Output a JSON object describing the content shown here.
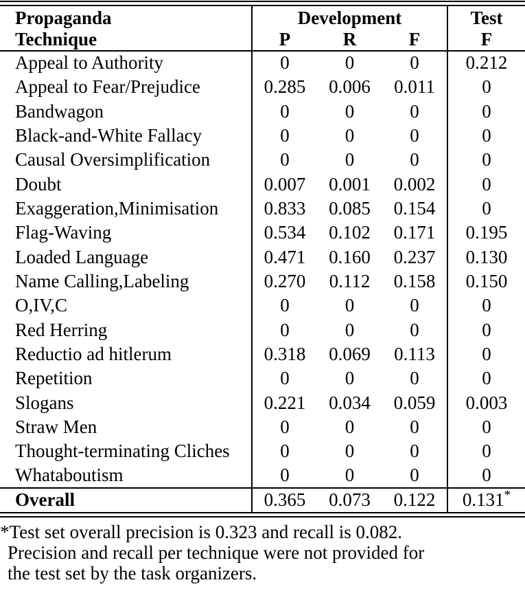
{
  "table": {
    "header": {
      "col1_line1": "Propaganda",
      "col1_line2": "Technique",
      "dev_group": "Development",
      "test_group": "Test",
      "dev_cols": [
        "P",
        "R",
        "F"
      ],
      "test_col": "F"
    },
    "rows": [
      {
        "technique": "Appeal to Authority",
        "p": "0",
        "r": "0",
        "f": "0",
        "test_f": "0.212"
      },
      {
        "technique": "Appeal to Fear/Prejudice",
        "p": "0.285",
        "r": "0.006",
        "f": "0.011",
        "test_f": "0"
      },
      {
        "technique": "Bandwagon",
        "p": "0",
        "r": "0",
        "f": "0",
        "test_f": "0"
      },
      {
        "technique": "Black-and-White Fallacy",
        "p": "0",
        "r": "0",
        "f": "0",
        "test_f": "0"
      },
      {
        "technique": "Causal Oversimplification",
        "p": "0",
        "r": "0",
        "f": "0",
        "test_f": "0"
      },
      {
        "technique": "Doubt",
        "p": "0.007",
        "r": "0.001",
        "f": "0.002",
        "test_f": "0"
      },
      {
        "technique": "Exaggeration,Minimisation",
        "p": "0.833",
        "r": "0.085",
        "f": "0.154",
        "test_f": "0"
      },
      {
        "technique": "Flag-Waving",
        "p": "0.534",
        "r": "0.102",
        "f": "0.171",
        "test_f": "0.195"
      },
      {
        "technique": "Loaded Language",
        "p": "0.471",
        "r": "0.160",
        "f": "0.237",
        "test_f": "0.130"
      },
      {
        "technique": "Name Calling,Labeling",
        "p": "0.270",
        "r": "0.112",
        "f": "0.158",
        "test_f": "0.150"
      },
      {
        "technique": "O,IV,C",
        "p": "0",
        "r": "0",
        "f": "0",
        "test_f": "0"
      },
      {
        "technique": "Red Herring",
        "p": "0",
        "r": "0",
        "f": "0",
        "test_f": "0"
      },
      {
        "technique": "Reductio ad hitlerum",
        "p": "0.318",
        "r": "0.069",
        "f": "0.113",
        "test_f": "0"
      },
      {
        "technique": "Repetition",
        "p": "0",
        "r": "0",
        "f": "0",
        "test_f": "0"
      },
      {
        "technique": "Slogans",
        "p": "0.221",
        "r": "0.034",
        "f": "0.059",
        "test_f": "0.003"
      },
      {
        "technique": "Straw Men",
        "p": "0",
        "r": "0",
        "f": "0",
        "test_f": "0"
      },
      {
        "technique": "Thought-terminating Cliches",
        "p": "0",
        "r": "0",
        "f": "0",
        "test_f": "0"
      },
      {
        "technique": "Whataboutism",
        "p": "0",
        "r": "0",
        "f": "0",
        "test_f": "0"
      }
    ],
    "overall": {
      "label": "Overall",
      "p": "0.365",
      "r": "0.073",
      "f": "0.122",
      "test_f": "0.131",
      "test_f_marker": "*"
    }
  },
  "footnote": {
    "marker": "*",
    "lines": [
      "*Test set overall precision is 0.323 and recall is 0.082.",
      "Precision and recall per technique were not provided for",
      "the test set by the task organizers."
    ]
  }
}
